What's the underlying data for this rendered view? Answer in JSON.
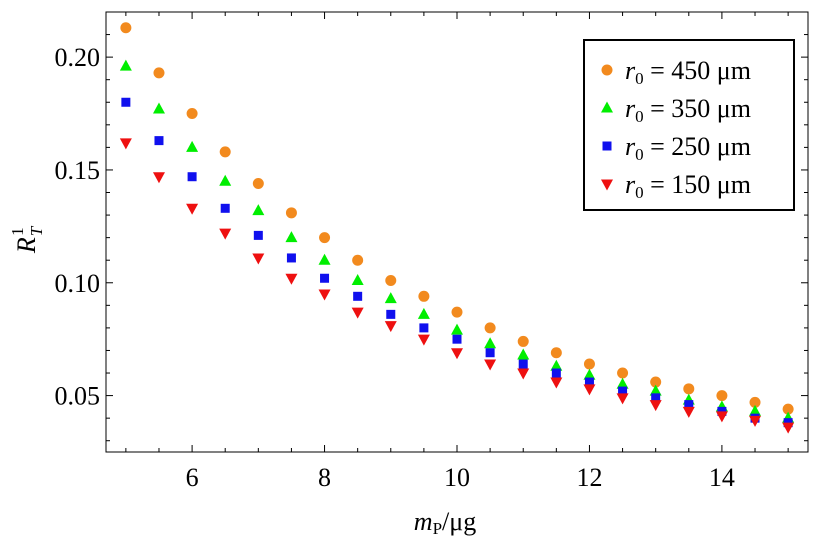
{
  "chart_data": {
    "type": "scatter",
    "title": "",
    "xlabel": "m_P/μg",
    "xlabel_parts": {
      "var": "m",
      "sub": "P",
      "unit": "/μg"
    },
    "ylabel": "R_T^1",
    "ylabel_parts": {
      "var": "R",
      "sub": "T",
      "sup": "1"
    },
    "xlim": [
      4.7,
      15.3
    ],
    "ylim": [
      0.025,
      0.22
    ],
    "xticks": [
      6,
      8,
      10,
      12,
      14
    ],
    "xtick_labels": [
      "6",
      "8",
      "10",
      "12",
      "14"
    ],
    "yticks": [
      0.05,
      0.1,
      0.15,
      0.2
    ],
    "ytick_labels": [
      "0.05",
      "0.10",
      "0.15",
      "0.20"
    ],
    "grid": false,
    "legend_position": "top-right",
    "x": [
      5,
      5.5,
      6,
      6.5,
      7,
      7.5,
      8,
      8.5,
      9,
      9.5,
      10,
      10.5,
      11,
      11.5,
      12,
      12.5,
      13,
      13.5,
      14,
      14.5,
      15
    ],
    "series": [
      {
        "name": "r0 = 450 μm",
        "legend_var": "r",
        "legend_sub": "0",
        "legend_rest": " = 450 μm",
        "marker": "circle",
        "color": "#F28A1E",
        "values": [
          0.213,
          0.193,
          0.175,
          0.158,
          0.144,
          0.131,
          0.12,
          0.11,
          0.101,
          0.094,
          0.087,
          0.08,
          0.074,
          0.069,
          0.064,
          0.06,
          0.056,
          0.053,
          0.05,
          0.047,
          0.044
        ]
      },
      {
        "name": "r0 = 350 μm",
        "legend_var": "r",
        "legend_sub": "0",
        "legend_rest": " = 350 μm",
        "marker": "triangle-up",
        "color": "#00EE00",
        "values": [
          0.196,
          0.177,
          0.16,
          0.145,
          0.132,
          0.12,
          0.11,
          0.101,
          0.093,
          0.086,
          0.079,
          0.073,
          0.068,
          0.063,
          0.059,
          0.055,
          0.052,
          0.048,
          0.045,
          0.043,
          0.04
        ]
      },
      {
        "name": "r0 = 250 μm",
        "legend_var": "r",
        "legend_sub": "0",
        "legend_rest": " = 250 μm",
        "marker": "square",
        "color": "#1010EE",
        "values": [
          0.18,
          0.163,
          0.147,
          0.133,
          0.121,
          0.111,
          0.102,
          0.094,
          0.086,
          0.08,
          0.075,
          0.069,
          0.064,
          0.06,
          0.056,
          0.052,
          0.049,
          0.046,
          0.043,
          0.04,
          0.038
        ]
      },
      {
        "name": "r0 = 150 μm",
        "legend_var": "r",
        "legend_sub": "0",
        "legend_rest": " = 150 μm",
        "marker": "triangle-down",
        "color": "#EE1010",
        "values": [
          0.162,
          0.147,
          0.133,
          0.122,
          0.111,
          0.102,
          0.095,
          0.087,
          0.081,
          0.075,
          0.069,
          0.064,
          0.06,
          0.056,
          0.053,
          0.049,
          0.046,
          0.043,
          0.041,
          0.039,
          0.036
        ]
      }
    ]
  }
}
